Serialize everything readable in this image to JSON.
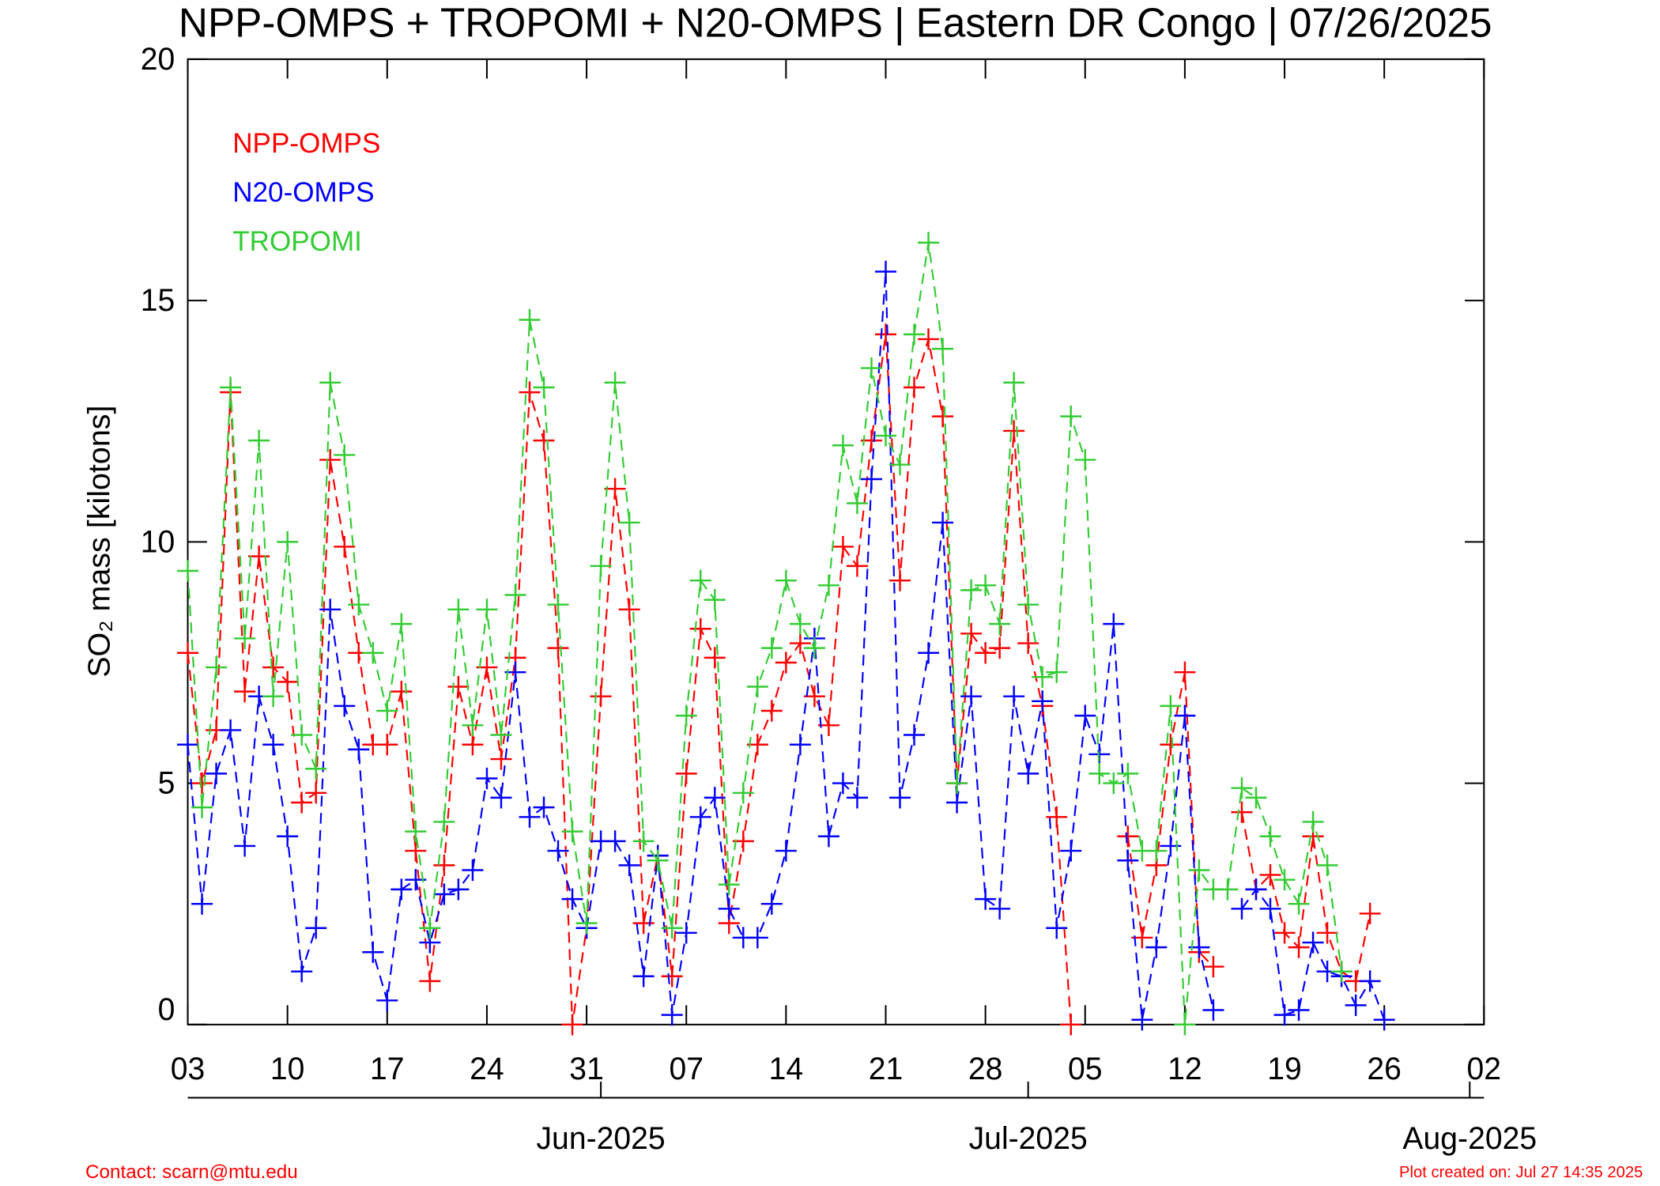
{
  "chart_data": {
    "type": "line",
    "title": "NPP-OMPS + TROPOMI + N20-OMPS | Eastern DR Congo | 07/26/2025",
    "ylabel": "SO₂ mass [kilotons]",
    "x": [
      "2025-05-03",
      "2025-05-04",
      "2025-05-05",
      "2025-05-06",
      "2025-05-07",
      "2025-05-08",
      "2025-05-09",
      "2025-05-10",
      "2025-05-11",
      "2025-05-12",
      "2025-05-13",
      "2025-05-14",
      "2025-05-15",
      "2025-05-16",
      "2025-05-17",
      "2025-05-18",
      "2025-05-19",
      "2025-05-20",
      "2025-05-21",
      "2025-05-22",
      "2025-05-23",
      "2025-05-24",
      "2025-05-25",
      "2025-05-26",
      "2025-05-27",
      "2025-05-28",
      "2025-05-29",
      "2025-05-30",
      "2025-05-31",
      "2025-06-01",
      "2025-06-02",
      "2025-06-03",
      "2025-06-04",
      "2025-06-05",
      "2025-06-06",
      "2025-06-07",
      "2025-06-08",
      "2025-06-09",
      "2025-06-10",
      "2025-06-11",
      "2025-06-12",
      "2025-06-13",
      "2025-06-14",
      "2025-06-15",
      "2025-06-16",
      "2025-06-17",
      "2025-06-18",
      "2025-06-19",
      "2025-06-20",
      "2025-06-21",
      "2025-06-22",
      "2025-06-23",
      "2025-06-24",
      "2025-06-25",
      "2025-06-26",
      "2025-06-27",
      "2025-06-28",
      "2025-06-29",
      "2025-06-30",
      "2025-07-01",
      "2025-07-02",
      "2025-07-03",
      "2025-07-04",
      "2025-07-05",
      "2025-07-06",
      "2025-07-07",
      "2025-07-08",
      "2025-07-09",
      "2025-07-10",
      "2025-07-11",
      "2025-07-12",
      "2025-07-13",
      "2025-07-14",
      "2025-07-15",
      "2025-07-16",
      "2025-07-17",
      "2025-07-18",
      "2025-07-19",
      "2025-07-20",
      "2025-07-21",
      "2025-07-22",
      "2025-07-23",
      "2025-07-24",
      "2025-07-25",
      "2025-07-26"
    ],
    "series": [
      {
        "name": "NPP-OMPS",
        "color": "#ff0000",
        "values": [
          7.7,
          5.0,
          6.1,
          13.1,
          6.9,
          9.7,
          7.4,
          7.1,
          4.6,
          4.8,
          11.7,
          9.9,
          7.7,
          5.8,
          5.8,
          6.9,
          3.6,
          0.9,
          3.3,
          7.0,
          5.8,
          7.4,
          5.5,
          7.6,
          13.1,
          12.1,
          7.8,
          0,
          2.0,
          6.8,
          11.1,
          8.6,
          2.1,
          3.5,
          1.0,
          5.2,
          8.2,
          7.6,
          2.1,
          3.8,
          5.8,
          6.5,
          7.5,
          7.9,
          6.8,
          6.2,
          9.9,
          9.5,
          12.1,
          14.3,
          9.2,
          13.2,
          14.2,
          12.6,
          5.0,
          8.1,
          7.7,
          7.8,
          12.3,
          7.9,
          6.6,
          4.3,
          0,
          null,
          null,
          null,
          3.9,
          1.8,
          3.3,
          5.8,
          7.3,
          1.5,
          1.2,
          null,
          4.4,
          2.8,
          3.1,
          1.9,
          1.6,
          3.9,
          1.9,
          1.1,
          0.9,
          2.3,
          null
        ]
      },
      {
        "name": "N20-OMPS",
        "color": "#0000ff",
        "values": [
          5.8,
          2.5,
          5.2,
          6.1,
          3.7,
          6.8,
          5.8,
          3.9,
          1.1,
          2.0,
          8.6,
          6.6,
          5.7,
          1.5,
          0.5,
          2.8,
          3.0,
          1.7,
          2.7,
          2.8,
          3.2,
          5.1,
          4.7,
          7.3,
          4.3,
          4.5,
          3.6,
          2.6,
          2.0,
          3.8,
          3.8,
          3.3,
          1.0,
          3.5,
          0.2,
          1.9,
          4.3,
          4.7,
          2.4,
          1.8,
          1.8,
          2.5,
          3.6,
          5.8,
          8.0,
          3.9,
          5.0,
          4.7,
          11.3,
          15.6,
          4.7,
          6.0,
          7.7,
          10.4,
          4.6,
          6.8,
          2.6,
          2.4,
          6.8,
          5.2,
          6.7,
          2.0,
          3.6,
          6.4,
          5.6,
          8.3,
          3.4,
          0.1,
          1.6,
          3.7,
          6.4,
          1.6,
          0.3,
          null,
          2.4,
          2.8,
          2.4,
          0.2,
          0.3,
          1.7,
          1.1,
          1.0,
          0.4,
          0.9,
          0.1
        ]
      },
      {
        "name": "TROPOMI",
        "color": "#33cc33",
        "values": [
          9.4,
          4.5,
          7.4,
          13.2,
          8.0,
          12.1,
          6.8,
          10.0,
          6.0,
          5.3,
          13.3,
          11.8,
          8.7,
          7.7,
          6.5,
          8.3,
          4.0,
          2.0,
          4.2,
          8.6,
          6.2,
          8.6,
          6.0,
          8.9,
          14.6,
          13.2,
          8.7,
          4.0,
          2.1,
          9.5,
          13.3,
          10.4,
          3.8,
          3.4,
          2.0,
          6.4,
          9.2,
          8.8,
          2.9,
          4.8,
          7.0,
          7.8,
          9.2,
          8.3,
          7.8,
          9.1,
          12.0,
          10.8,
          13.6,
          12.2,
          11.6,
          14.3,
          16.2,
          14.0,
          5.0,
          9.0,
          9.1,
          8.3,
          13.3,
          8.7,
          7.2,
          7.3,
          12.6,
          11.7,
          5.2,
          5.0,
          5.2,
          3.6,
          3.6,
          6.6,
          0,
          3.2,
          2.8,
          2.8,
          4.9,
          4.7,
          3.9,
          3.0,
          2.5,
          4.2,
          3.3,
          1.1,
          null,
          null,
          null
        ]
      }
    ],
    "xlim": [
      "2025-05-03",
      "2025-08-02"
    ],
    "xticks": [
      {
        "value": "2025-05-03",
        "label": "03"
      },
      {
        "value": "2025-05-10",
        "label": "10"
      },
      {
        "value": "2025-05-17",
        "label": "17"
      },
      {
        "value": "2025-05-24",
        "label": "24"
      },
      {
        "value": "2025-05-31",
        "label": "31"
      },
      {
        "value": "2025-06-07",
        "label": "07"
      },
      {
        "value": "2025-06-14",
        "label": "14"
      },
      {
        "value": "2025-06-21",
        "label": "21"
      },
      {
        "value": "2025-06-28",
        "label": "28"
      },
      {
        "value": "2025-07-05",
        "label": "05"
      },
      {
        "value": "2025-07-12",
        "label": "12"
      },
      {
        "value": "2025-07-19",
        "label": "19"
      },
      {
        "value": "2025-07-26",
        "label": "26"
      },
      {
        "value": "2025-08-02",
        "label": "02"
      }
    ],
    "month_ticks": [
      {
        "value": "2025-06-01",
        "label": "Jun-2025"
      },
      {
        "value": "2025-07-01",
        "label": "Jul-2025"
      },
      {
        "value": "2025-08-01",
        "label": "Aug-2025"
      }
    ],
    "ylim": [
      0,
      20
    ],
    "yticks": [
      0,
      5,
      10,
      15,
      20
    ],
    "legend": "upper left",
    "footer_left": "Contact: scarn@mtu.edu",
    "footer_right": "Plot created on: Jul 27 14:35 2025"
  }
}
